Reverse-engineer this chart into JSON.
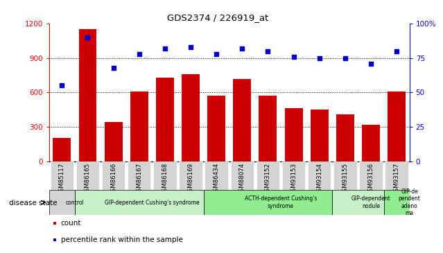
{
  "title": "GDS2374 / 226919_at",
  "samples": [
    "GSM85117",
    "GSM86165",
    "GSM86166",
    "GSM86167",
    "GSM86168",
    "GSM86169",
    "GSM86434",
    "GSM88074",
    "GSM93152",
    "GSM93153",
    "GSM93154",
    "GSM93155",
    "GSM93156",
    "GSM93157"
  ],
  "counts": [
    200,
    1150,
    340,
    610,
    730,
    760,
    570,
    720,
    570,
    460,
    450,
    410,
    320,
    610
  ],
  "percentiles": [
    55,
    90,
    68,
    78,
    82,
    83,
    78,
    82,
    80,
    76,
    75,
    75,
    71,
    80
  ],
  "disease_groups": [
    {
      "label": "control",
      "start": 0,
      "end": 1,
      "color": "#d4d4d4"
    },
    {
      "label": "GIP-dependent Cushing's syndrome",
      "start": 1,
      "end": 6,
      "color": "#c8f0c8"
    },
    {
      "label": "ACTH-dependent Cushing's\nsyndrome",
      "start": 6,
      "end": 11,
      "color": "#90ee90"
    },
    {
      "label": "GIP-dependent\nnodule",
      "start": 11,
      "end": 13,
      "color": "#c8f0c8"
    },
    {
      "label": "GIP-de\npendent\nadeno\nma",
      "start": 13,
      "end": 14,
      "color": "#90ee90"
    }
  ],
  "bar_color": "#cc0000",
  "dot_color": "#0000cc",
  "left_ylim": [
    0,
    1200
  ],
  "right_ylim": [
    0,
    100
  ],
  "left_yticks": [
    0,
    300,
    600,
    900,
    1200
  ],
  "right_yticks": [
    0,
    25,
    50,
    75,
    100
  ],
  "right_yticklabels": [
    "0",
    "25",
    "50",
    "75",
    "100%"
  ],
  "grid_values": [
    300,
    600,
    900
  ],
  "bg_color": "#ffffff"
}
